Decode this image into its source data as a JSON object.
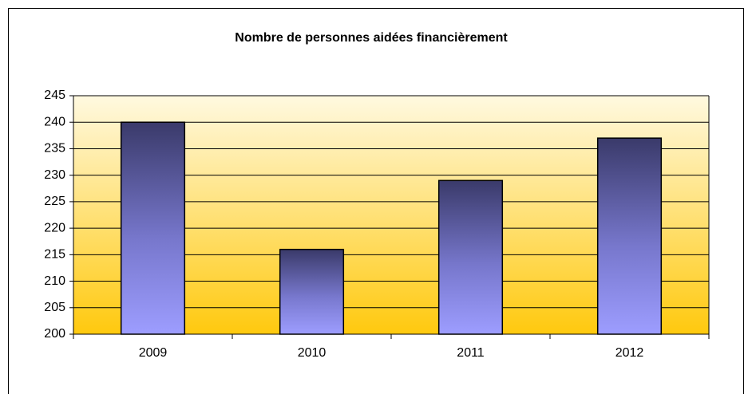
{
  "chart_data": {
    "type": "bar",
    "title": "Nombre de personnes aidées financièrement",
    "categories": [
      "2009",
      "2010",
      "2011",
      "2012"
    ],
    "values": [
      240,
      216,
      229,
      237
    ],
    "ylim": [
      200,
      245
    ],
    "yticks": [
      200,
      205,
      210,
      215,
      220,
      225,
      230,
      235,
      240,
      245
    ],
    "grid": true
  }
}
